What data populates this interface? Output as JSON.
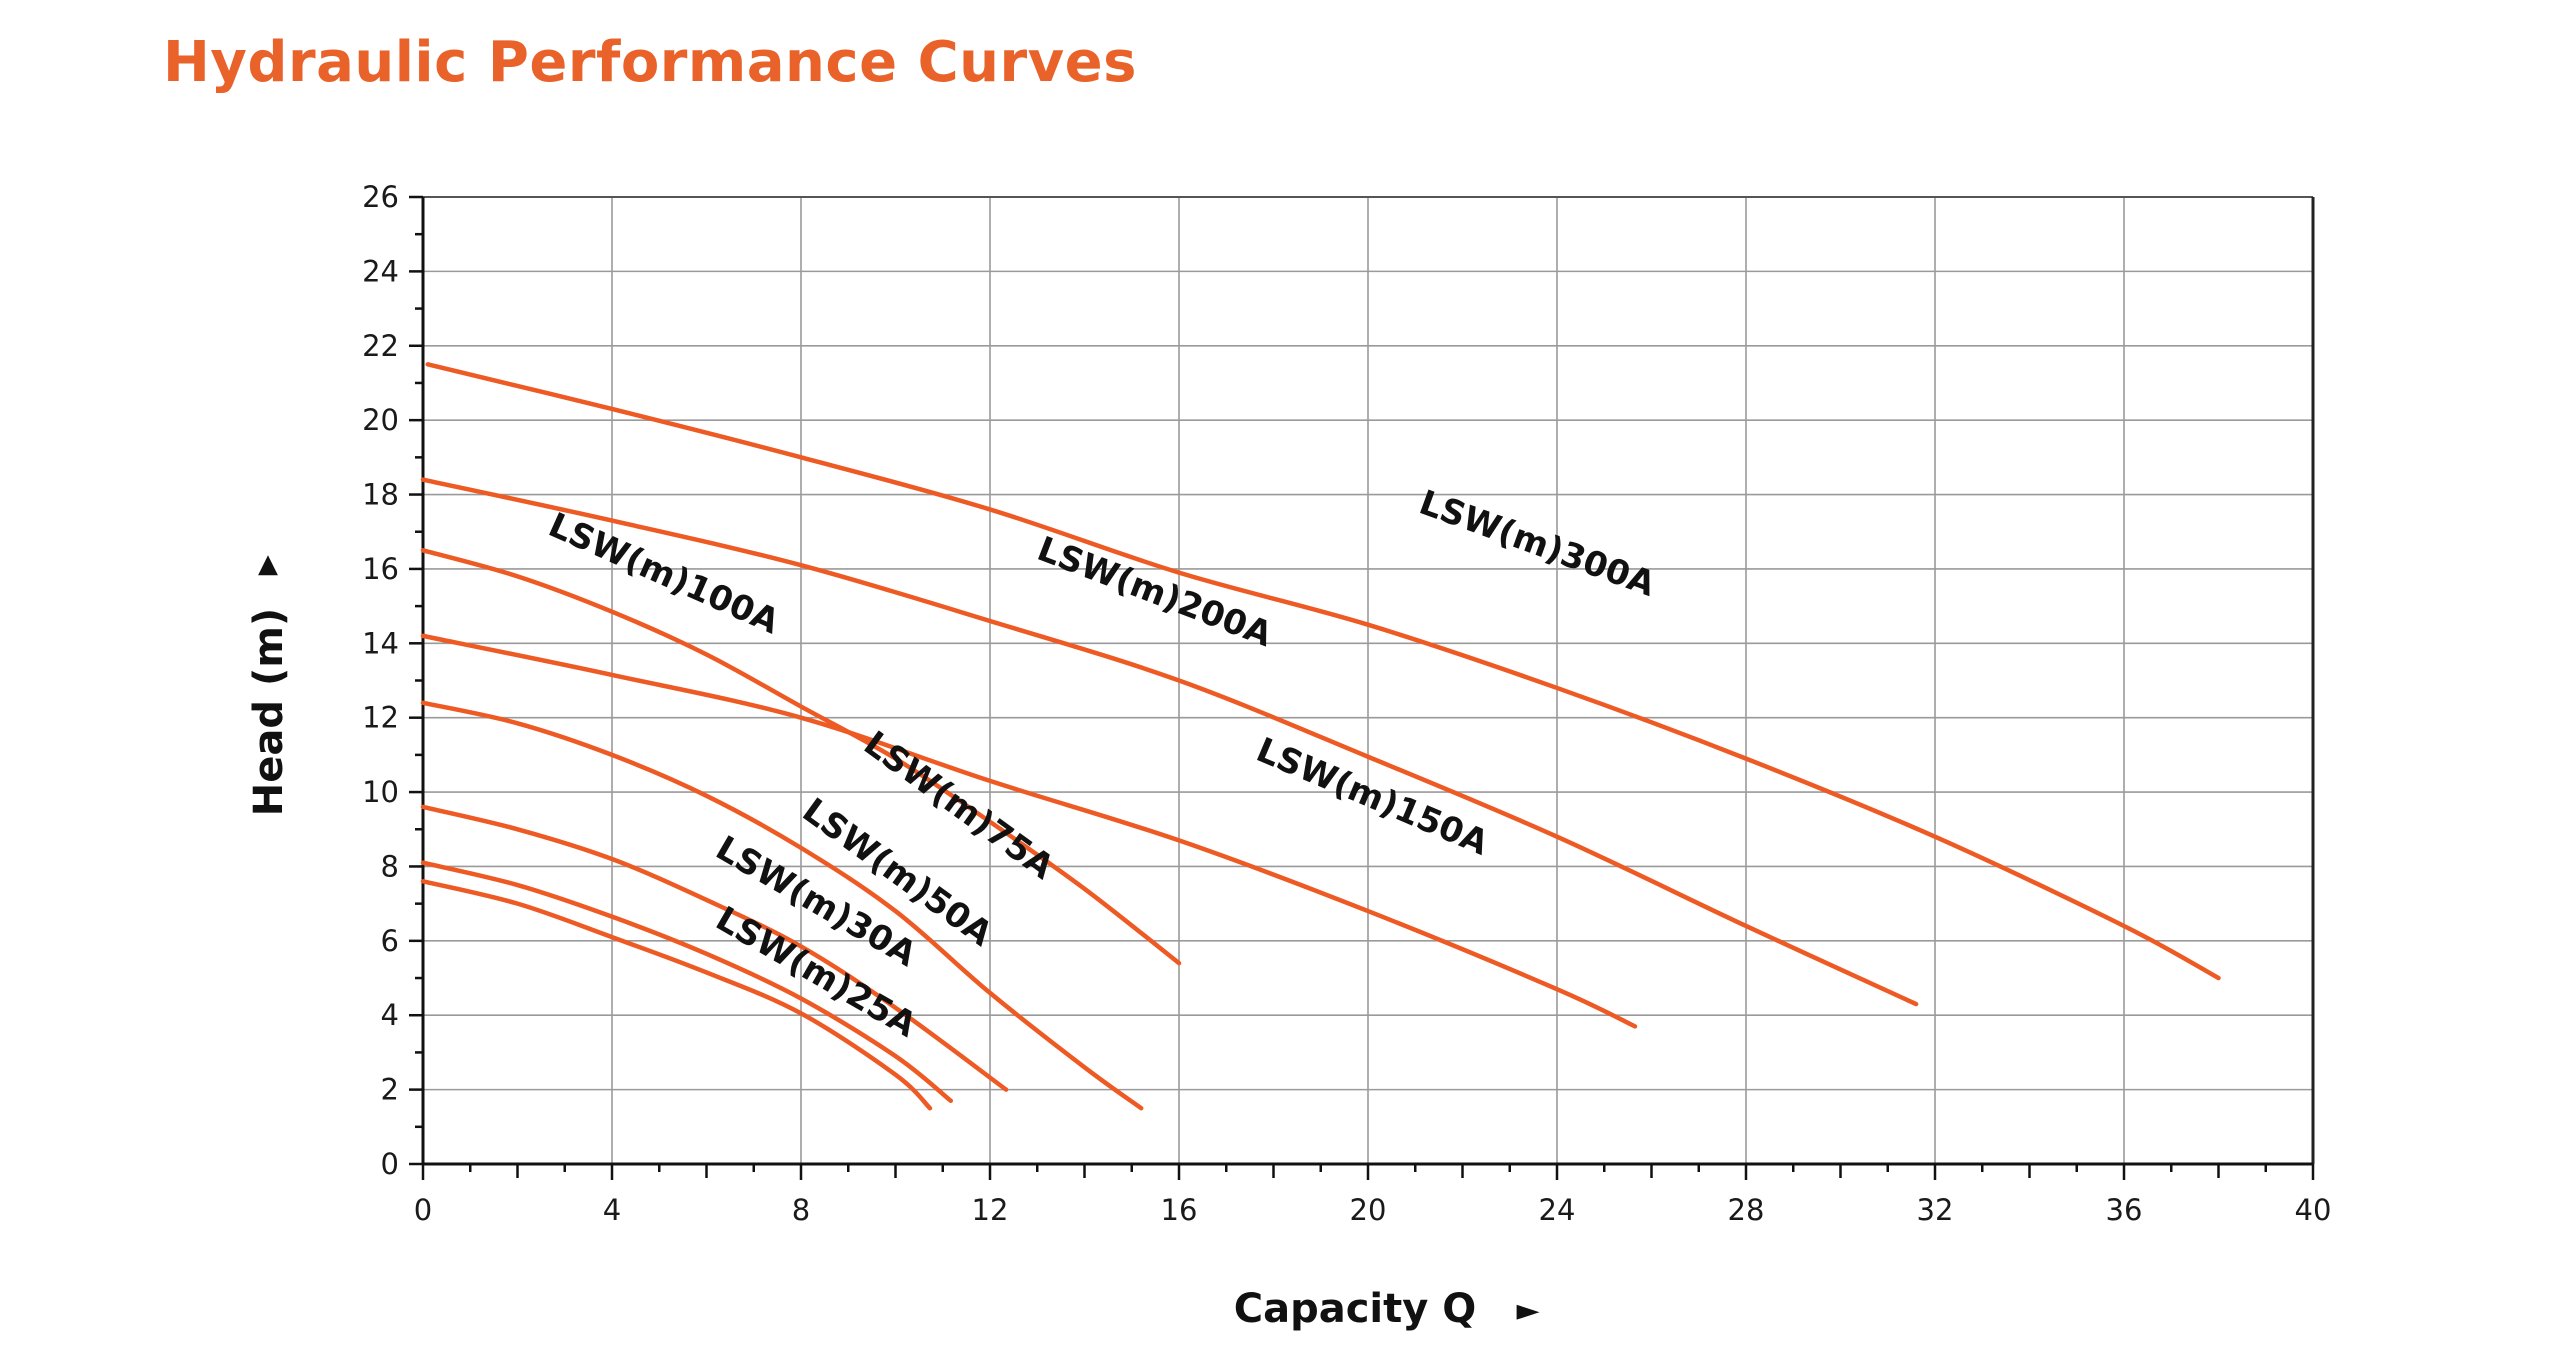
{
  "page": {
    "title": "Hydraulic Performance Curves",
    "title_color": "#E8622A",
    "curve_color": "#EE5A24"
  },
  "chart_data": {
    "type": "line",
    "title": "Hydraulic Performance Curves",
    "xlabel": "Capacity Q",
    "xlabel_arrow": "►",
    "ylabel": "Head (m)",
    "ylabel_arrow": "▲",
    "xlim": [
      0,
      40
    ],
    "ylim": [
      0,
      26
    ],
    "x_ticks": [
      0,
      4,
      8,
      12,
      16,
      20,
      24,
      28,
      32,
      36,
      40
    ],
    "y_ticks": [
      0,
      2,
      4,
      6,
      8,
      10,
      12,
      14,
      16,
      18,
      20,
      22,
      24,
      26
    ],
    "x_minor_step": 1,
    "y_minor_step": 1,
    "grid": true,
    "legend": "inline-labels",
    "series": [
      {
        "name": "LSW(m)300A",
        "x": [
          0.1,
          4,
          8,
          12,
          16,
          20,
          24,
          28,
          32,
          36,
          38.0
        ],
        "y": [
          21.5,
          20.3,
          19.0,
          17.6,
          15.9,
          14.5,
          12.8,
          10.9,
          8.8,
          6.4,
          5.0
        ]
      },
      {
        "name": "LSW(m)200A",
        "x": [
          0,
          4,
          8,
          12,
          16,
          20,
          24,
          28,
          31.6
        ],
        "y": [
          18.4,
          17.3,
          16.1,
          14.6,
          13.0,
          10.95,
          8.8,
          6.4,
          4.3
        ]
      },
      {
        "name": "LSW(m)100A",
        "x": [
          0,
          2,
          4,
          6,
          8,
          10,
          12,
          14,
          16.0
        ],
        "y": [
          16.5,
          15.8,
          14.85,
          13.7,
          12.3,
          10.9,
          9.2,
          7.4,
          5.4
        ]
      },
      {
        "name": "LSW(m)150A",
        "x": [
          0,
          4,
          8,
          12,
          16,
          20,
          24,
          25.65
        ],
        "y": [
          14.2,
          13.15,
          12.0,
          10.3,
          8.7,
          6.8,
          4.7,
          3.7
        ]
      },
      {
        "name": "LSW(m)75A",
        "x": [
          0,
          2,
          4,
          6,
          8,
          10,
          12,
          14,
          15.2
        ],
        "y": [
          12.4,
          11.85,
          11.0,
          9.9,
          8.5,
          6.8,
          4.6,
          2.6,
          1.5
        ]
      },
      {
        "name": "LSW(m)50A",
        "x": [
          0,
          2,
          4,
          6,
          8,
          10,
          12.34
        ],
        "y": [
          9.6,
          9.0,
          8.2,
          7.1,
          5.85,
          4.2,
          2.0
        ]
      },
      {
        "name": "LSW(m)30A",
        "x": [
          0,
          2,
          4,
          6,
          8,
          10,
          11.17
        ],
        "y": [
          8.1,
          7.5,
          6.65,
          5.65,
          4.45,
          2.9,
          1.7
        ]
      },
      {
        "name": "LSW(m)25A",
        "x": [
          0,
          2,
          4,
          6,
          8,
          10,
          10.73
        ],
        "y": [
          7.6,
          7.0,
          6.1,
          5.15,
          4.05,
          2.4,
          1.5
        ]
      }
    ],
    "annotations": [
      {
        "text": "LSW(m)300A",
        "x": 23.5,
        "y": 16.4,
        "angle": 20
      },
      {
        "text": "LSW(m)200A",
        "x": 15.4,
        "y": 15.1,
        "angle": 21
      },
      {
        "text": "LSW(m)100A",
        "x": 5.0,
        "y": 15.6,
        "angle": 24
      },
      {
        "text": "LSW(m)150A",
        "x": 20.0,
        "y": 9.6,
        "angle": 23
      },
      {
        "text": "LSW(m)75A",
        "x": 11.2,
        "y": 9.4,
        "angle": 36
      },
      {
        "text": "LSW(m)50A",
        "x": 9.9,
        "y": 7.6,
        "angle": 36
      },
      {
        "text": "LSW(m)30A",
        "x": 8.2,
        "y": 6.8,
        "angle": 30
      },
      {
        "text": "LSW(m)25A",
        "x": 8.2,
        "y": 4.9,
        "angle": 30
      }
    ]
  }
}
